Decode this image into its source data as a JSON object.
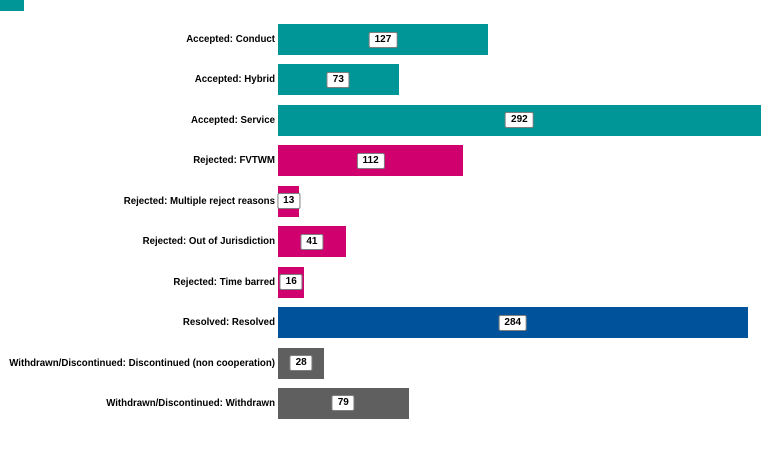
{
  "chart_data": {
    "type": "bar",
    "orientation": "horizontal",
    "title": "",
    "xlabel": "",
    "ylabel": "",
    "xlim": [
      0,
      297
    ],
    "grid": false,
    "legend": "none",
    "value_label_style": "white boxes centered on bars",
    "categories": [
      "Accepted: Conduct",
      "Accepted: Hybrid",
      "Accepted: Service",
      "Rejected: FVTWM",
      "Rejected: Multiple reject reasons",
      "Rejected: Out of Jurisdiction",
      "Rejected: Time barred",
      "Resolved: Resolved",
      "Withdrawn/Discontinued: Discontinued (non cooperation)",
      "Withdrawn/Discontinued: Withdrawn"
    ],
    "values": [
      127,
      73,
      292,
      112,
      13,
      41,
      16,
      284,
      28,
      79
    ],
    "bar_colors": [
      "#009698",
      "#009698",
      "#009698",
      "#D0006F",
      "#D0006F",
      "#D0006F",
      "#D0006F",
      "#00529B",
      "#5F5F5F",
      "#5F5F5F"
    ],
    "groups": [
      {
        "name": "Accepted",
        "color": "#009698"
      },
      {
        "name": "Rejected",
        "color": "#D0006F"
      },
      {
        "name": "Resolved",
        "color": "#00529B"
      },
      {
        "name": "Withdrawn/Discontinued",
        "color": "#5F5F5F"
      }
    ]
  },
  "decorations": {
    "corner_swatch_color": "#009698"
  },
  "style": {
    "background": "#FFFFFF",
    "value_box_bg": "#FFFFFF",
    "value_box_border": "#7F7F7F",
    "label_color": "#000000"
  }
}
